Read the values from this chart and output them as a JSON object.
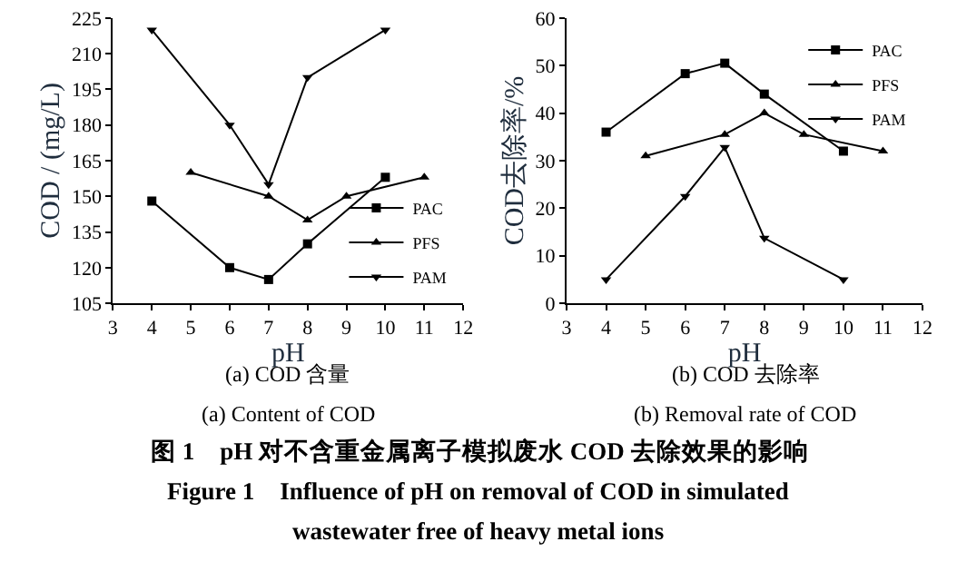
{
  "chart_data": [
    {
      "type": "line",
      "xlabel": "pH",
      "ylabel": "COD / (mg/L)",
      "xlim": [
        3,
        12
      ],
      "xticks": [
        3,
        4,
        5,
        6,
        7,
        8,
        9,
        10,
        11,
        12
      ],
      "ylim": [
        105,
        225
      ],
      "yticks": [
        105,
        120,
        135,
        150,
        165,
        180,
        195,
        210,
        225
      ],
      "legend": "bottom right",
      "line_style": "solid",
      "series": [
        {
          "name": "PAC",
          "color": "#000000",
          "marker": "square",
          "x": [
            4,
            6,
            7,
            8,
            10
          ],
          "values": [
            148,
            120,
            115,
            130,
            158
          ]
        },
        {
          "name": "PFS",
          "color": "#000000",
          "marker": "triangle",
          "x": [
            5,
            7,
            8,
            9,
            11
          ],
          "values": [
            160,
            150,
            140,
            150,
            158
          ]
        },
        {
          "name": "PAM",
          "color": "#000000",
          "marker": "triangle-down",
          "x": [
            4,
            6,
            7,
            8,
            10
          ],
          "values": [
            220,
            180,
            155,
            200,
            220
          ]
        }
      ],
      "annotations": [
        "(a) COD 含量",
        "(a) Content of COD",
        "图 1　pH 对不含重金属离子模拟废水 COD 去除效果的影响",
        "Figure 1　Influence of pH on removal of COD in simulated",
        "wastewater free of heavy metal ions"
      ]
    },
    {
      "type": "line",
      "xlabel": "pH",
      "ylabel": "COD去除率/%",
      "xlim": [
        3,
        12
      ],
      "xticks": [
        3,
        4,
        5,
        6,
        7,
        8,
        9,
        10,
        11,
        12
      ],
      "ylim": [
        0,
        60
      ],
      "yticks": [
        0,
        10,
        20,
        30,
        40,
        50,
        60
      ],
      "legend": "top right",
      "line_style": "solid",
      "series": [
        {
          "name": "PAC",
          "color": "#000000",
          "marker": "square",
          "x": [
            4,
            6,
            7,
            8,
            10
          ],
          "values": [
            36,
            48.3,
            50.5,
            44,
            32
          ]
        },
        {
          "name": "PFS",
          "color": "#000000",
          "marker": "triangle",
          "x": [
            5,
            7,
            8,
            9,
            11
          ],
          "values": [
            31,
            35.5,
            40,
            35.5,
            32
          ]
        },
        {
          "name": "PAM",
          "color": "#000000",
          "marker": "triangle-down",
          "x": [
            4,
            6,
            7,
            8,
            10
          ],
          "values": [
            5,
            22.5,
            32.8,
            13.7,
            5
          ]
        }
      ],
      "annotations": [
        "(b) COD 去除率",
        "(b) Removal rate of COD"
      ]
    }
  ]
}
